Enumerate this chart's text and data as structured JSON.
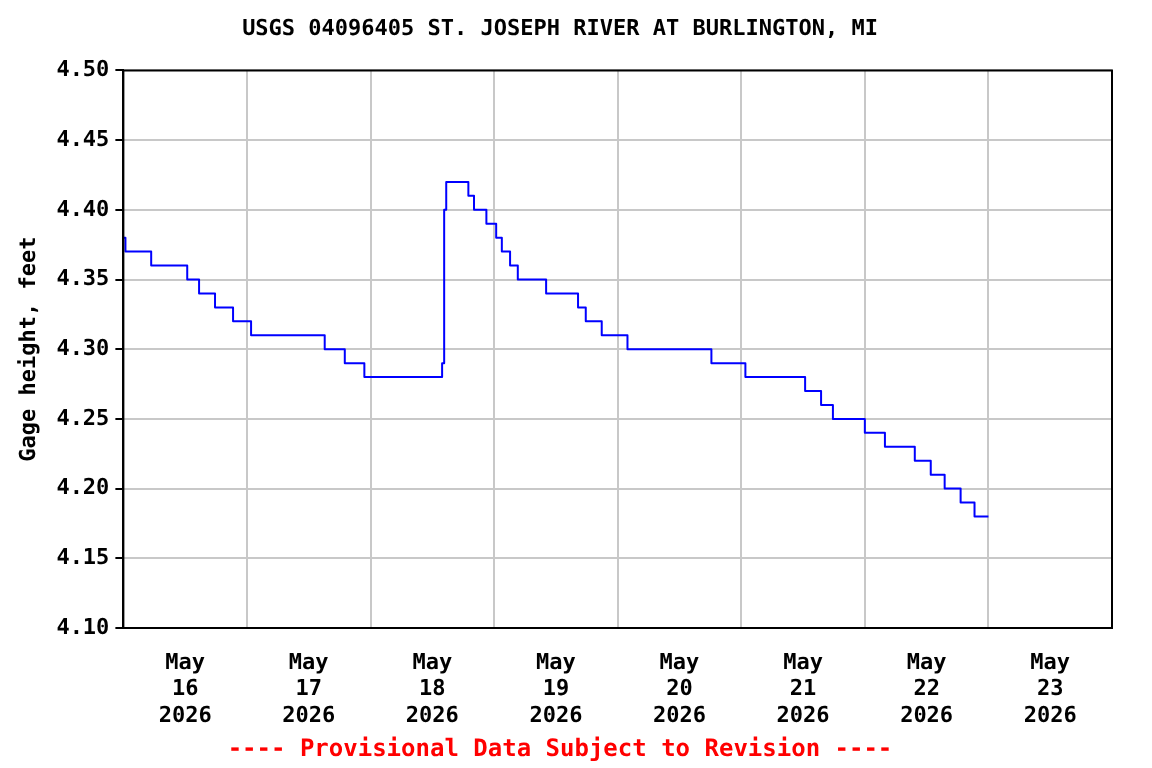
{
  "chart_data": {
    "type": "step",
    "title": "USGS 04096405 ST. JOSEPH RIVER AT BURLINGTON, MI",
    "ylabel": "Gage height, feet",
    "annotations": [
      "---- Provisional Data Subject to Revision ----"
    ],
    "x": [
      "2026-05-16T00:00",
      "2026-05-16T00:24",
      "2026-05-16T05:24",
      "2026-05-16T12:24",
      "2026-05-16T14:42",
      "2026-05-16T17:48",
      "2026-05-16T21:18",
      "2026-05-17T00:48",
      "2026-05-17T15:06",
      "2026-05-17T19:00",
      "2026-05-17T22:48",
      "2026-05-18T13:54",
      "2026-05-18T14:18",
      "2026-05-18T14:42",
      "2026-05-18T19:00",
      "2026-05-18T20:06",
      "2026-05-18T22:30",
      "2026-05-19T00:24",
      "2026-05-19T01:30",
      "2026-05-19T03:06",
      "2026-05-19T04:36",
      "2026-05-19T10:06",
      "2026-05-19T16:18",
      "2026-05-19T17:48",
      "2026-05-19T20:54",
      "2026-05-20T01:54",
      "2026-05-20T18:12",
      "2026-05-21T00:48",
      "2026-05-21T12:24",
      "2026-05-21T15:30",
      "2026-05-21T17:48",
      "2026-05-22T00:00",
      "2026-05-22T03:54",
      "2026-05-22T09:42",
      "2026-05-22T12:48",
      "2026-05-22T15:30",
      "2026-05-22T18:36",
      "2026-05-22T21:18",
      "2026-05-23T00:00"
    ],
    "values": [
      4.38,
      4.37,
      4.36,
      4.35,
      4.34,
      4.33,
      4.32,
      4.31,
      4.3,
      4.29,
      4.28,
      4.29,
      4.4,
      4.42,
      4.41,
      4.4,
      4.39,
      4.38,
      4.37,
      4.36,
      4.35,
      4.34,
      4.33,
      4.32,
      4.31,
      4.3,
      4.29,
      4.28,
      4.27,
      4.26,
      4.25,
      4.24,
      4.23,
      4.22,
      4.21,
      4.2,
      4.19,
      4.18,
      4.18
    ],
    "color": "#0000ff",
    "xlim": [
      "2026-05-16",
      "2026-05-24"
    ],
    "xticks": [
      {
        "value": "2026-05-16T12:00",
        "label": "May\n16\n2026"
      },
      {
        "value": "2026-05-17",
        "label": null
      },
      {
        "value": "2026-05-17T12:00",
        "label": "May\n17\n2026"
      },
      {
        "value": "2026-05-18",
        "label": null
      },
      {
        "value": "2026-05-18T12:00",
        "label": "May\n18\n2026"
      },
      {
        "value": "2026-05-19",
        "label": null
      },
      {
        "value": "2026-05-19T12:00",
        "label": "May\n19\n2026"
      },
      {
        "value": "2026-05-20",
        "label": null
      },
      {
        "value": "2026-05-20T12:00",
        "label": "May\n20\n2026"
      },
      {
        "value": "2026-05-21",
        "label": null
      },
      {
        "value": "2026-05-21T12:00",
        "label": "May\n21\n2026"
      },
      {
        "value": "2026-05-22",
        "label": null
      },
      {
        "value": "2026-05-22T12:00",
        "label": "May\n22\n2026"
      },
      {
        "value": "2026-05-23",
        "label": null
      },
      {
        "value": "2026-05-23T12:00",
        "label": "May\n23\n2026"
      }
    ],
    "ylim": [
      4.1,
      4.5
    ],
    "yticks": [
      {
        "value": 4.1,
        "label": "4.10"
      },
      {
        "value": 4.15,
        "label": "4.15"
      },
      {
        "value": 4.2,
        "label": "4.20"
      },
      {
        "value": 4.25,
        "label": "4.25"
      },
      {
        "value": 4.3,
        "label": "4.30"
      },
      {
        "value": 4.35,
        "label": "4.35"
      },
      {
        "value": 4.4,
        "label": "4.40"
      },
      {
        "value": 4.45,
        "label": "4.45"
      },
      {
        "value": 4.5,
        "label": "4.50"
      }
    ],
    "grid": true,
    "legend": false,
    "marker": "none",
    "line_style": "solid"
  }
}
